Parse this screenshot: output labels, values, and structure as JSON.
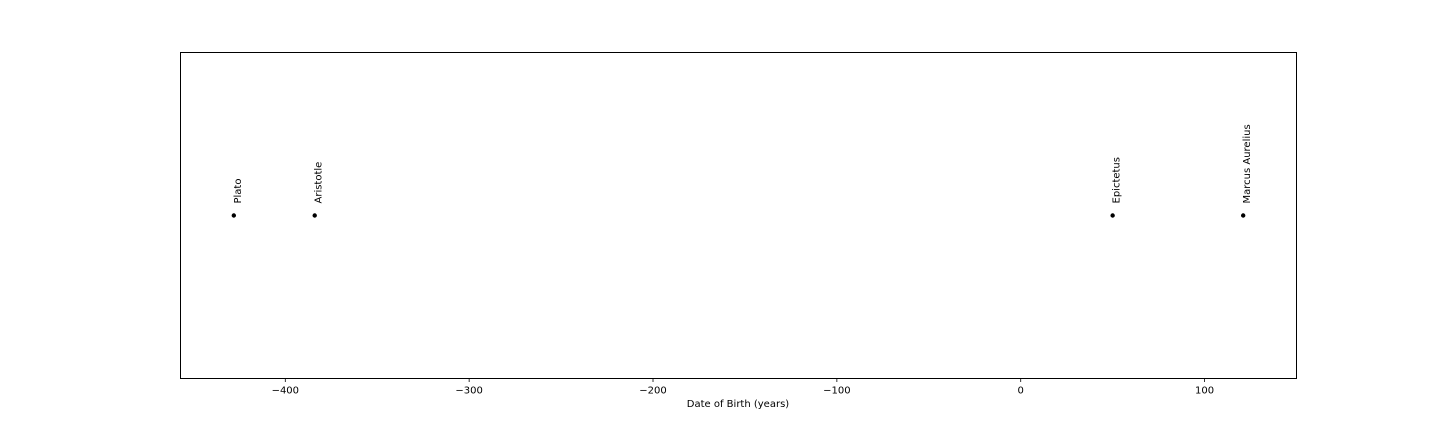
{
  "chart_data": {
    "type": "scatter",
    "title": "",
    "xlabel": "Date of Birth (years)",
    "ylabel": "",
    "xlim": [
      -457,
      150
    ],
    "ylim": [
      -1,
      1
    ],
    "grid": false,
    "x_ticks": [
      -400,
      -300,
      -200,
      -100,
      0,
      100
    ],
    "x_tick_labels": [
      "−400",
      "−300",
      "−200",
      "−100",
      "0",
      "100"
    ],
    "y_ticks_visible": false,
    "points": [
      {
        "label": "Plato",
        "x": -428,
        "y": 0
      },
      {
        "label": "Aristotle",
        "x": -384,
        "y": 0
      },
      {
        "label": "Epictetus",
        "x": 50,
        "y": 0
      },
      {
        "label": "Marcus Aurelius",
        "x": 121,
        "y": 0
      }
    ],
    "marker_color": "#000000"
  }
}
